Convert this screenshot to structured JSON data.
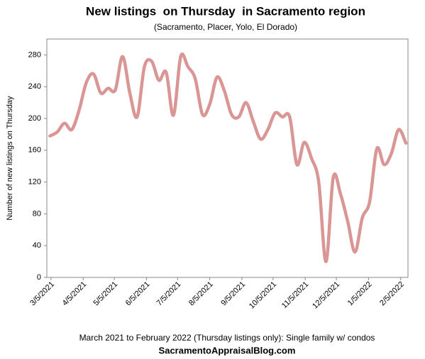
{
  "chart_data": {
    "type": "line",
    "title": "New listings  on Thursday  in Sacramento region",
    "subtitle": "(Sacramento, Placer, Yolo, El Dorado)",
    "y_label": "Number of new listings on Thursday",
    "footer": "March 2021 to February 2022 (Thursday listings only): Single family w/ condos",
    "source": "SacramentoAppraisalBlog.com",
    "x": [
      "2021-03-04",
      "2021-03-11",
      "2021-03-18",
      "2021-03-25",
      "2021-04-01",
      "2021-04-08",
      "2021-04-15",
      "2021-04-22",
      "2021-04-29",
      "2021-05-06",
      "2021-05-13",
      "2021-05-20",
      "2021-05-27",
      "2021-06-03",
      "2021-06-10",
      "2021-06-17",
      "2021-06-24",
      "2021-07-01",
      "2021-07-08",
      "2021-07-15",
      "2021-07-22",
      "2021-07-29",
      "2021-08-05",
      "2021-08-12",
      "2021-08-19",
      "2021-08-26",
      "2021-09-02",
      "2021-09-09",
      "2021-09-16",
      "2021-09-23",
      "2021-09-30",
      "2021-10-07",
      "2021-10-14",
      "2021-10-21",
      "2021-10-28",
      "2021-11-04",
      "2021-11-11",
      "2021-11-18",
      "2021-11-25",
      "2021-12-02",
      "2021-12-09",
      "2021-12-16",
      "2021-12-23",
      "2021-12-30",
      "2022-01-06",
      "2022-01-13",
      "2022-01-20",
      "2022-01-27",
      "2022-02-03",
      "2022-02-10"
    ],
    "series": [
      {
        "name": "New listings",
        "color": "#d99694",
        "values": [
          178,
          183,
          194,
          186,
          210,
          245,
          256,
          232,
          238,
          236,
          278,
          232,
          202,
          265,
          272,
          248,
          258,
          204,
          278,
          265,
          250,
          205,
          218,
          252,
          235,
          205,
          202,
          220,
          196,
          174,
          186,
          207,
          202,
          202,
          142,
          170,
          150,
          120,
          20,
          126,
          105,
          70,
          32,
          75,
          95,
          162,
          142,
          156,
          186,
          169
        ]
      }
    ],
    "xlim": [
      "2021-03-01",
      "2022-02-12"
    ],
    "xticks": [
      {
        "value": "2021-03-05",
        "label": "3/5/2021"
      },
      {
        "value": "2021-04-05",
        "label": "4/5/2021"
      },
      {
        "value": "2021-05-05",
        "label": "5/5/2021"
      },
      {
        "value": "2021-06-05",
        "label": "6/5/2021"
      },
      {
        "value": "2021-07-05",
        "label": "7/5/2021"
      },
      {
        "value": "2021-08-05",
        "label": "8/5/2021"
      },
      {
        "value": "2021-09-05",
        "label": "9/5/2021"
      },
      {
        "value": "2021-10-05",
        "label": "10/5/2021"
      },
      {
        "value": "2021-11-05",
        "label": "11/5/2021"
      },
      {
        "value": "2021-12-05",
        "label": "12/5/2021"
      },
      {
        "value": "2022-01-05",
        "label": "1/5/2022"
      },
      {
        "value": "2022-02-05",
        "label": "2/5/2022"
      }
    ],
    "ylim": [
      0,
      300
    ],
    "yticks": [
      0,
      40,
      80,
      120,
      160,
      200,
      240,
      280
    ],
    "grid": false
  }
}
